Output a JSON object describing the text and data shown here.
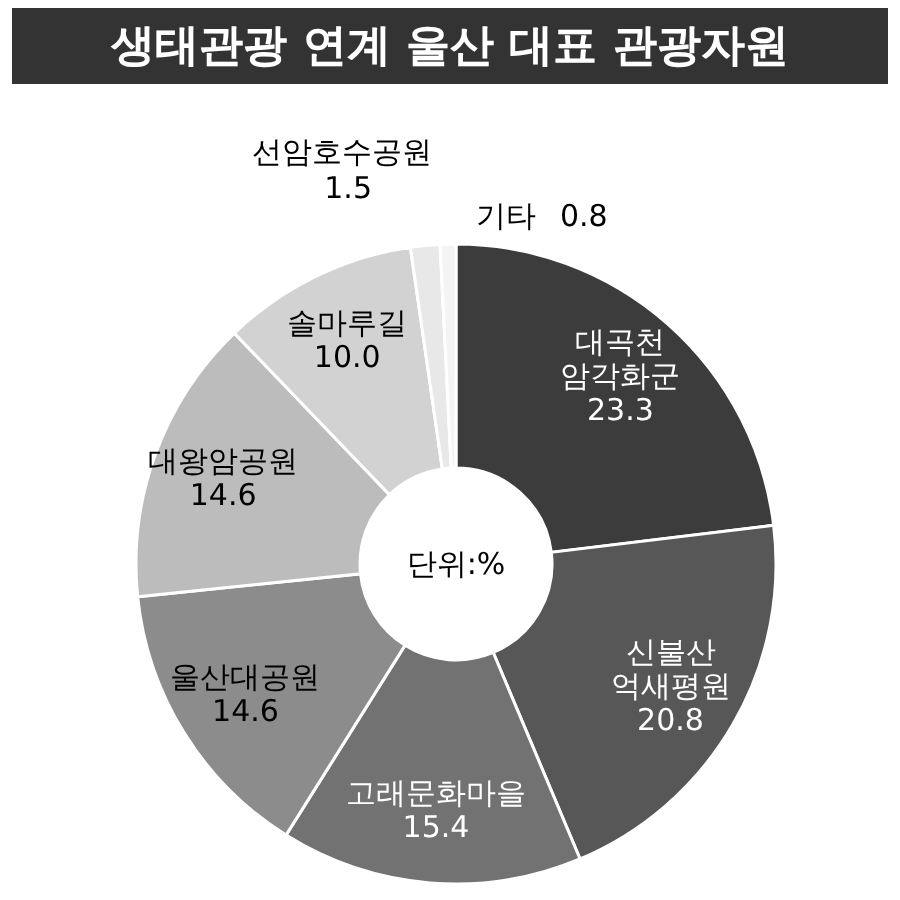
{
  "chart_data": {
    "type": "donut",
    "title": "생태관광 연계 울산 대표 관광자원",
    "categories": [
      "대곡천 암각화군",
      "신불산 억새평원",
      "고래문화마을",
      "울산대공원",
      "대왕암공원",
      "솔마루길",
      "선암호수공원",
      "기타"
    ],
    "values": [
      23.3,
      20.8,
      15.4,
      14.6,
      14.6,
      10.0,
      1.5,
      0.8
    ],
    "colors": [
      "#3c3c3c",
      "#575757",
      "#727272",
      "#8c8c8c",
      "#bcbcbc",
      "#d2d2d2",
      "#e8e8e8",
      "#f4f4f4"
    ],
    "value_labels": [
      "23.3",
      "20.8",
      "15.4",
      "14.6",
      "14.6",
      "10.0",
      "1.5",
      "0.8"
    ],
    "annotations": [
      "단위:%"
    ]
  }
}
